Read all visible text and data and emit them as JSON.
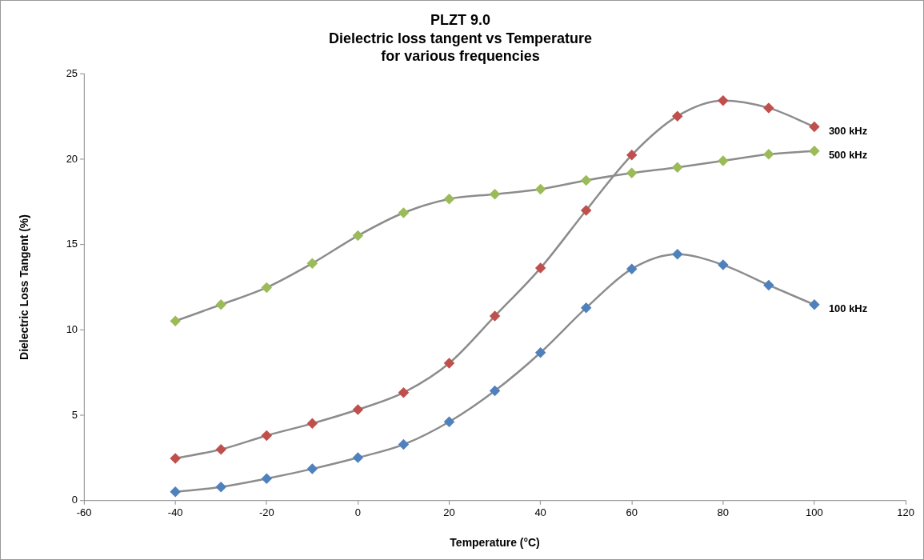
{
  "chart_data": {
    "type": "line",
    "title": "PLZT 9.0\nDielectric loss tangent vs Temperature\nfor various frequencies",
    "xlabel": "Temperature (°C)",
    "ylabel": "Dielectric Loss Tangent (%)",
    "x": [
      -40,
      -30,
      -20,
      -10,
      0,
      10,
      20,
      30,
      40,
      50,
      60,
      70,
      80,
      90,
      100
    ],
    "series": [
      {
        "name": "100 kHz",
        "color": "#4f81bd",
        "values": [
          0.52,
          0.8,
          1.29,
          1.86,
          2.52,
          3.29,
          4.62,
          6.43,
          8.67,
          11.29,
          13.57,
          14.43,
          13.81,
          12.62,
          11.48
        ]
      },
      {
        "name": "300 kHz",
        "color": "#c0504d",
        "values": [
          2.48,
          3.0,
          3.81,
          4.52,
          5.33,
          6.33,
          8.05,
          10.81,
          13.62,
          17.0,
          20.24,
          22.52,
          23.43,
          23.0,
          21.9
        ]
      },
      {
        "name": "500 kHz",
        "color": "#9bbb59",
        "values": [
          10.52,
          11.48,
          12.48,
          13.9,
          15.52,
          16.86,
          17.67,
          17.95,
          18.24,
          18.76,
          19.19,
          19.52,
          19.9,
          20.29,
          20.48
        ]
      }
    ],
    "xlim": [
      -60,
      120
    ],
    "xticks": [
      -60,
      -40,
      -20,
      0,
      20,
      40,
      60,
      80,
      100,
      120
    ],
    "ylim": [
      0,
      25
    ],
    "yticks": [
      0,
      5,
      10,
      15,
      20,
      25
    ],
    "grid": false,
    "legend": false,
    "marker": "diamond",
    "line_style": "solid"
  }
}
